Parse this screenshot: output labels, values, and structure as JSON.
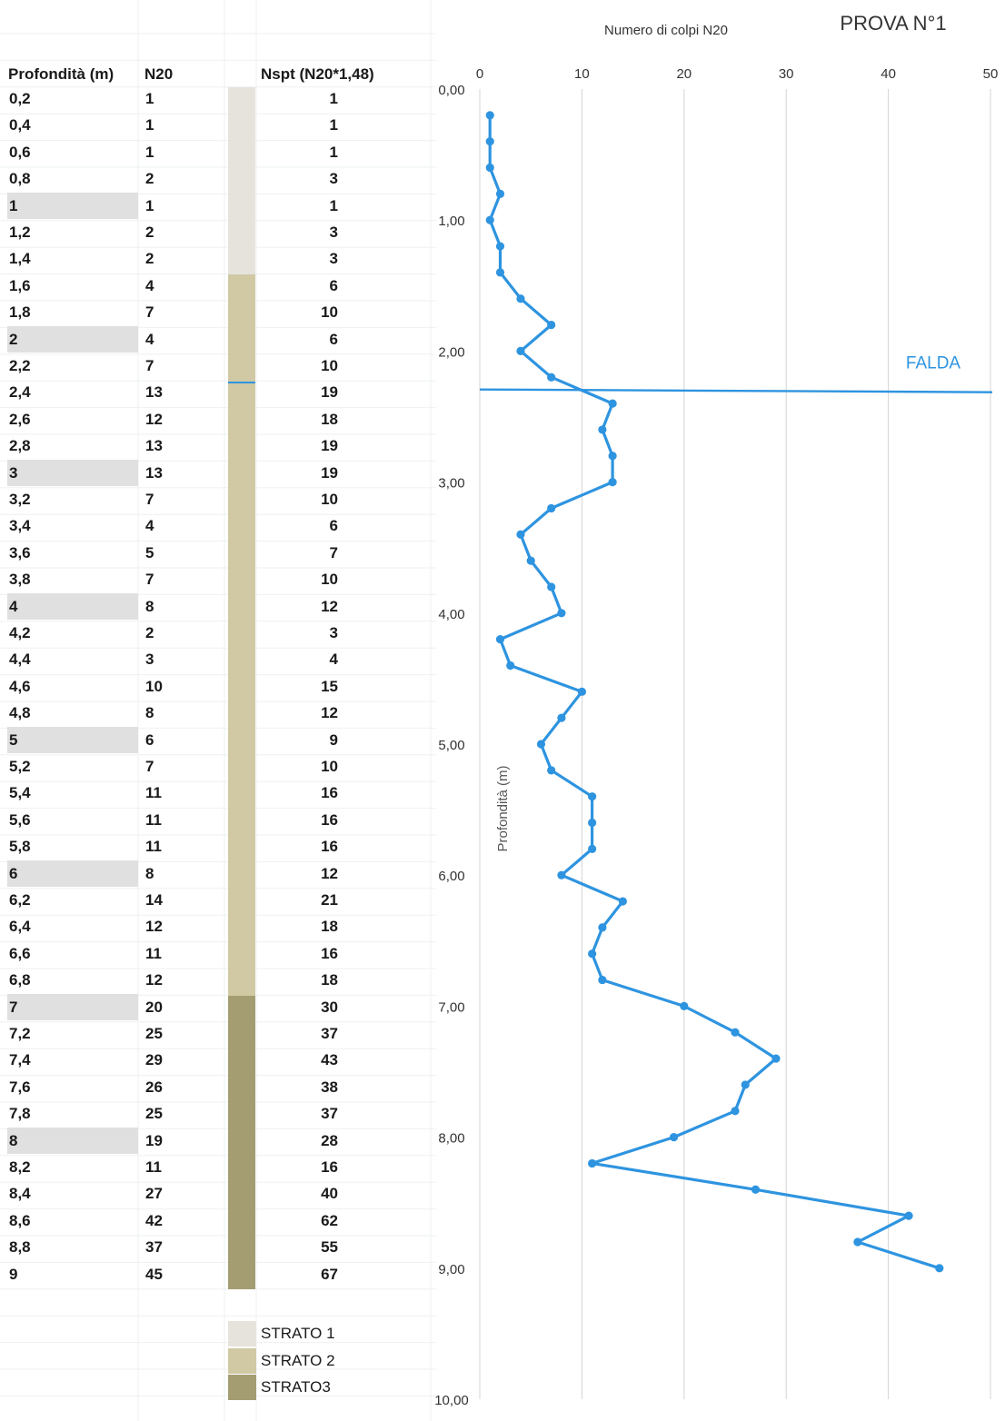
{
  "table": {
    "headers": {
      "depth": "Profondità (m)",
      "n20": "N20",
      "nspt": "Nspt (N20*1,48)"
    },
    "rows": [
      {
        "depth": "0,2",
        "n20": "1",
        "nspt": "1"
      },
      {
        "depth": "0,4",
        "n20": "1",
        "nspt": "1"
      },
      {
        "depth": "0,6",
        "n20": "1",
        "nspt": "1"
      },
      {
        "depth": "0,8",
        "n20": "2",
        "nspt": "3"
      },
      {
        "depth": "1",
        "n20": "1",
        "nspt": "1",
        "highlight": true
      },
      {
        "depth": "1,2",
        "n20": "2",
        "nspt": "3"
      },
      {
        "depth": "1,4",
        "n20": "2",
        "nspt": "3"
      },
      {
        "depth": "1,6",
        "n20": "4",
        "nspt": "6"
      },
      {
        "depth": "1,8",
        "n20": "7",
        "nspt": "10"
      },
      {
        "depth": "2",
        "n20": "4",
        "nspt": "6",
        "highlight": true
      },
      {
        "depth": "2,2",
        "n20": "7",
        "nspt": "10"
      },
      {
        "depth": "2,4",
        "n20": "13",
        "nspt": "19"
      },
      {
        "depth": "2,6",
        "n20": "12",
        "nspt": "18"
      },
      {
        "depth": "2,8",
        "n20": "13",
        "nspt": "19"
      },
      {
        "depth": "3",
        "n20": "13",
        "nspt": "19",
        "highlight": true
      },
      {
        "depth": "3,2",
        "n20": "7",
        "nspt": "10"
      },
      {
        "depth": "3,4",
        "n20": "4",
        "nspt": "6"
      },
      {
        "depth": "3,6",
        "n20": "5",
        "nspt": "7"
      },
      {
        "depth": "3,8",
        "n20": "7",
        "nspt": "10"
      },
      {
        "depth": "4",
        "n20": "8",
        "nspt": "12",
        "highlight": true
      },
      {
        "depth": "4,2",
        "n20": "2",
        "nspt": "3"
      },
      {
        "depth": "4,4",
        "n20": "3",
        "nspt": "4"
      },
      {
        "depth": "4,6",
        "n20": "10",
        "nspt": "15"
      },
      {
        "depth": "4,8",
        "n20": "8",
        "nspt": "12"
      },
      {
        "depth": "5",
        "n20": "6",
        "nspt": "9",
        "highlight": true
      },
      {
        "depth": "5,2",
        "n20": "7",
        "nspt": "10"
      },
      {
        "depth": "5,4",
        "n20": "11",
        "nspt": "16"
      },
      {
        "depth": "5,6",
        "n20": "11",
        "nspt": "16"
      },
      {
        "depth": "5,8",
        "n20": "11",
        "nspt": "16"
      },
      {
        "depth": "6",
        "n20": "8",
        "nspt": "12",
        "highlight": true
      },
      {
        "depth": "6,2",
        "n20": "14",
        "nspt": "21"
      },
      {
        "depth": "6,4",
        "n20": "12",
        "nspt": "18"
      },
      {
        "depth": "6,6",
        "n20": "11",
        "nspt": "16"
      },
      {
        "depth": "6,8",
        "n20": "12",
        "nspt": "18"
      },
      {
        "depth": "7",
        "n20": "20",
        "nspt": "30",
        "highlight": true
      },
      {
        "depth": "7,2",
        "n20": "25",
        "nspt": "37"
      },
      {
        "depth": "7,4",
        "n20": "29",
        "nspt": "43"
      },
      {
        "depth": "7,6",
        "n20": "26",
        "nspt": "38"
      },
      {
        "depth": "7,8",
        "n20": "25",
        "nspt": "37"
      },
      {
        "depth": "8",
        "n20": "19",
        "nspt": "28",
        "highlight": true
      },
      {
        "depth": "8,2",
        "n20": "11",
        "nspt": "16"
      },
      {
        "depth": "8,4",
        "n20": "27",
        "nspt": "40"
      },
      {
        "depth": "8,6",
        "n20": "42",
        "nspt": "62"
      },
      {
        "depth": "8,8",
        "n20": "37",
        "nspt": "55"
      },
      {
        "depth": "9",
        "n20": "45",
        "nspt": "67"
      }
    ]
  },
  "strata": {
    "layers": [
      {
        "label": "STRATO 1",
        "from_depth": 0,
        "to_depth": 1.4,
        "color": "#e6e3dd"
      },
      {
        "label": "STRATO 2",
        "from_depth": 1.4,
        "to_depth": 6.8,
        "color": "#d0c9a4"
      },
      {
        "label": "STRATO3",
        "from_depth": 6.8,
        "to_depth": 9.0,
        "color": "#a59d72"
      }
    ],
    "water_depth": 2.3
  },
  "chart_data": {
    "type": "line",
    "title": "PROVA N°1",
    "xlabel": "Numero di colpi N20",
    "ylabel": "Profondità (m)",
    "x_ticks": [
      "0",
      "10",
      "20",
      "30",
      "40",
      "50"
    ],
    "y_ticks": [
      "0,00",
      "1,00",
      "2,00",
      "3,00",
      "4,00",
      "5,00",
      "6,00",
      "7,00",
      "8,00",
      "9,00",
      "10,00"
    ],
    "xlim": [
      0,
      50
    ],
    "ylim": [
      0,
      10
    ],
    "y_inverted": true,
    "x_axis_position": "top",
    "grid": "vertical",
    "series": [
      {
        "color": "#2e94e0",
        "points": [
          [
            1,
            0.2
          ],
          [
            1,
            0.4
          ],
          [
            1,
            0.6
          ],
          [
            2,
            0.8
          ],
          [
            1,
            1.0
          ],
          [
            2,
            1.2
          ],
          [
            2,
            1.4
          ],
          [
            4,
            1.6
          ],
          [
            7,
            1.8
          ],
          [
            4,
            2.0
          ],
          [
            7,
            2.2
          ],
          [
            13,
            2.4
          ],
          [
            12,
            2.6
          ],
          [
            13,
            2.8
          ],
          [
            13,
            3.0
          ],
          [
            7,
            3.2
          ],
          [
            4,
            3.4
          ],
          [
            5,
            3.6
          ],
          [
            7,
            3.8
          ],
          [
            8,
            4.0
          ],
          [
            2,
            4.2
          ],
          [
            3,
            4.4
          ],
          [
            10,
            4.6
          ],
          [
            8,
            4.8
          ],
          [
            6,
            5.0
          ],
          [
            7,
            5.2
          ],
          [
            11,
            5.4
          ],
          [
            11,
            5.6
          ],
          [
            11,
            5.8
          ],
          [
            8,
            6.0
          ],
          [
            14,
            6.2
          ],
          [
            12,
            6.4
          ],
          [
            11,
            6.6
          ],
          [
            12,
            6.8
          ],
          [
            20,
            7.0
          ],
          [
            25,
            7.2
          ],
          [
            29,
            7.4
          ],
          [
            26,
            7.6
          ],
          [
            25,
            7.8
          ],
          [
            19,
            8.0
          ],
          [
            11,
            8.2
          ],
          [
            27,
            8.4
          ],
          [
            42,
            8.6
          ],
          [
            37,
            8.8
          ],
          [
            45,
            9.0
          ]
        ]
      }
    ],
    "annotations": [
      {
        "type": "hline",
        "y": 2.3,
        "label": "FALDA",
        "color": "#2e94e0"
      }
    ]
  }
}
